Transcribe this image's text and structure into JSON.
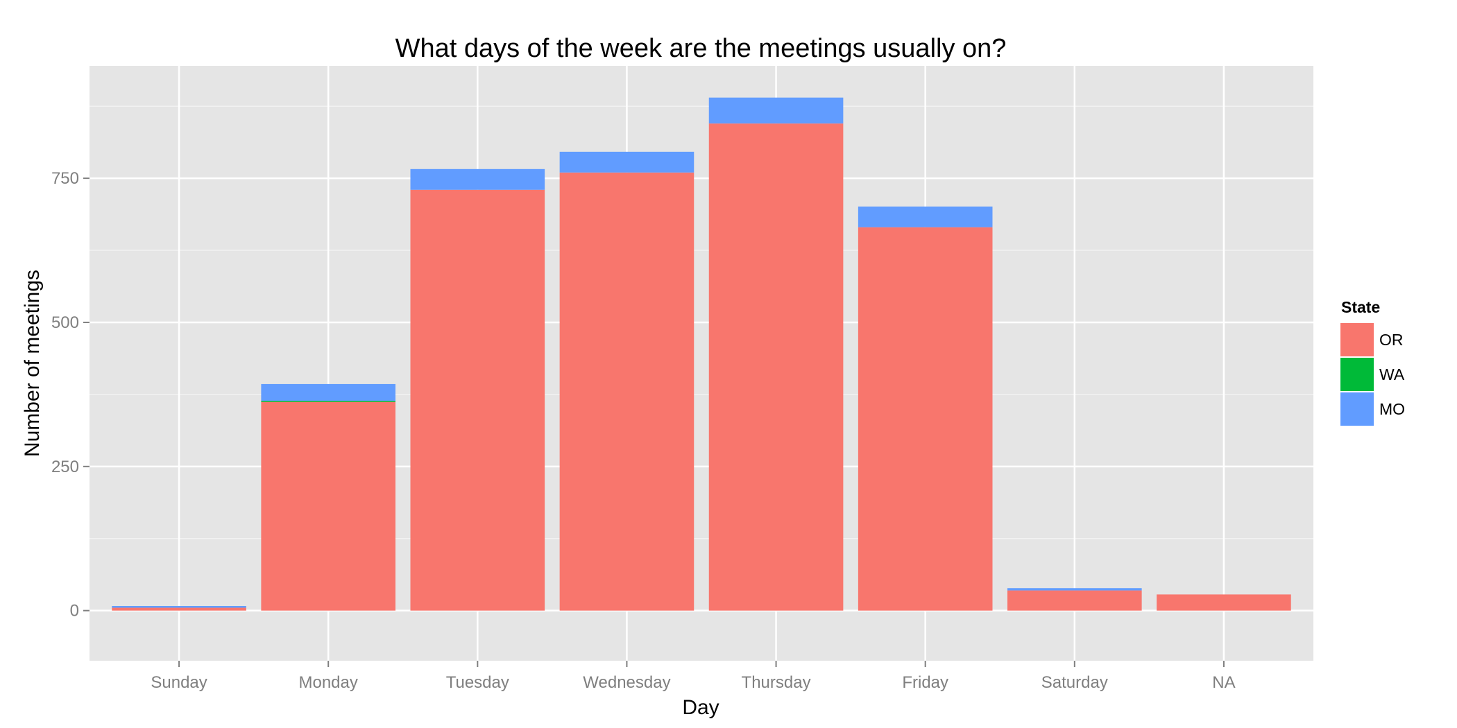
{
  "chart_data": {
    "type": "bar",
    "stacked": true,
    "title": "What days of the week are the meetings usually on?",
    "xlabel": "Day",
    "ylabel": "Number of meetings",
    "categories": [
      "Sunday",
      "Monday",
      "Tuesday",
      "Wednesday",
      "Thursday",
      "Friday",
      "Saturday",
      "NA"
    ],
    "ylim": [
      -87,
      945
    ],
    "yticks": [
      0,
      250,
      500,
      750
    ],
    "grid": true,
    "series": [
      {
        "name": "OR",
        "color": "#F8766D",
        "values": [
          5,
          362,
          730,
          760,
          845,
          665,
          35,
          28
        ]
      },
      {
        "name": "WA",
        "color": "#00BA38",
        "values": [
          0,
          2,
          0,
          0,
          0,
          0,
          0,
          0
        ]
      },
      {
        "name": "MO",
        "color": "#619CFF",
        "values": [
          3,
          29,
          36,
          36,
          45,
          36,
          4,
          0
        ]
      }
    ],
    "legend": {
      "title": "State",
      "position": "right"
    },
    "panel_background": "#E5E5E5",
    "grid_color": "#FFFFFF"
  }
}
